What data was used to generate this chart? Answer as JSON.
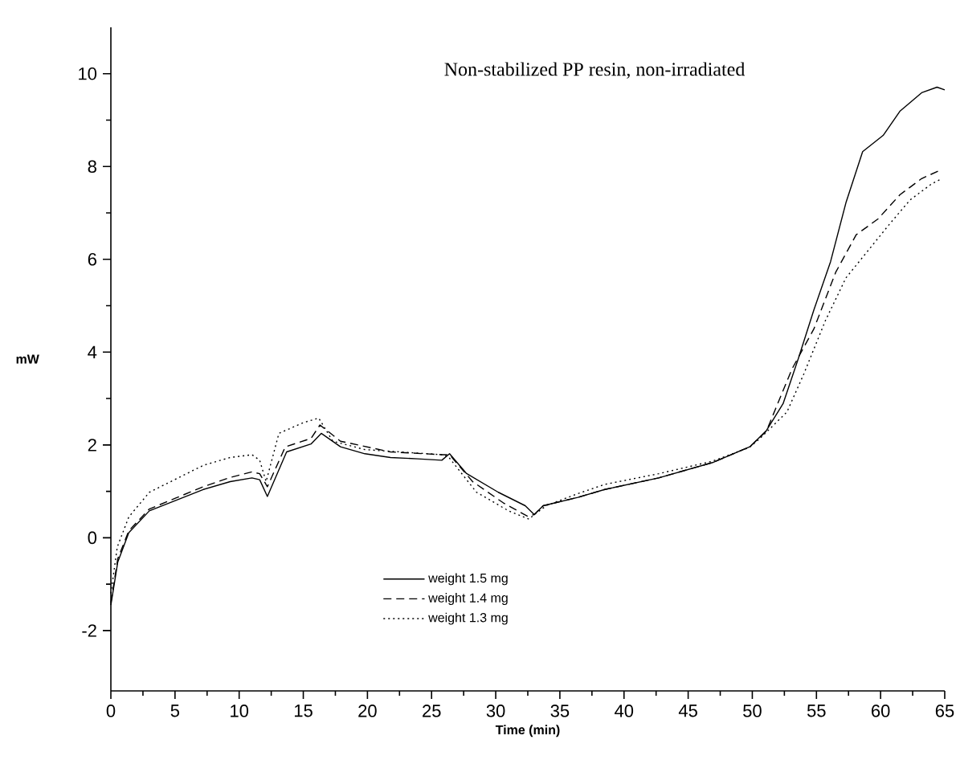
{
  "chart_data": {
    "type": "line",
    "title": "Non-stabilized PP resin, non-irradiated",
    "xlabel": "Time (min)",
    "ylabel": "mW",
    "xlim": [
      0,
      65
    ],
    "xticks": [
      0,
      5,
      10,
      15,
      20,
      25,
      30,
      35,
      40,
      45,
      50,
      55,
      60,
      65
    ],
    "ylim": [
      -3.3,
      11
    ],
    "yticks": [
      -2,
      0,
      2,
      4,
      6,
      8,
      10
    ],
    "grid": false,
    "legend": "bottom",
    "marker": "none",
    "series": [
      {
        "name": "weight 1.5 mg",
        "color": "#000000",
        "line_style": "solid",
        "x": [
          0,
          0.54,
          1.4,
          3.0,
          5.1,
          7.2,
          9.3,
          11.0,
          11.6,
          12.2,
          13.7,
          15.6,
          16.4,
          17.9,
          19.8,
          21.8,
          23.9,
          25.8,
          26.4,
          27.7,
          30.2,
          32.3,
          33.0,
          33.7,
          36.4,
          38.5,
          42.7,
          46.9,
          49.8,
          51.1,
          52.4,
          53.6,
          54.8,
          56.1,
          57.3,
          58.6,
          60.2,
          61.5,
          63.2,
          64.4,
          65
        ],
        "values": [
          -1.45,
          -0.52,
          0.11,
          0.58,
          0.81,
          1.04,
          1.21,
          1.29,
          1.25,
          0.89,
          1.85,
          2.02,
          2.25,
          1.96,
          1.81,
          1.73,
          1.7,
          1.67,
          1.81,
          1.39,
          0.98,
          0.69,
          0.5,
          0.69,
          0.87,
          1.04,
          1.29,
          1.62,
          1.96,
          2.31,
          2.89,
          3.87,
          4.91,
          5.95,
          7.22,
          8.32,
          8.67,
          9.19,
          9.59,
          9.71,
          9.65
        ]
      },
      {
        "name": "weight 1.4 mg",
        "color": "#000000",
        "line_style": "dashed",
        "x": [
          0,
          0.54,
          1.4,
          3.0,
          5.1,
          7.2,
          9.3,
          11.0,
          11.6,
          12.2,
          13.6,
          15.6,
          16.3,
          17.9,
          21.8,
          25.8,
          26.4,
          28.2,
          30.6,
          32.5,
          33.0,
          33.7,
          36.4,
          38.5,
          42.7,
          46.9,
          49.8,
          51.1,
          53.1,
          54.8,
          56.5,
          58.1,
          59.8,
          61.5,
          63.2,
          64.8
        ],
        "values": [
          -1.4,
          -0.45,
          0.15,
          0.62,
          0.86,
          1.1,
          1.3,
          1.42,
          1.38,
          1.1,
          1.96,
          2.14,
          2.43,
          2.08,
          1.85,
          1.79,
          1.79,
          1.21,
          0.75,
          0.46,
          0.5,
          0.69,
          0.87,
          1.04,
          1.29,
          1.62,
          1.96,
          2.3,
          3.64,
          4.5,
          5.72,
          6.53,
          6.87,
          7.39,
          7.74,
          7.94
        ]
      },
      {
        "name": "weight 1.3 mg",
        "color": "#000000",
        "line_style": "dotted",
        "x": [
          0,
          0.5,
          1.4,
          3.0,
          5.1,
          7.2,
          9.3,
          11.0,
          11.6,
          12.1,
          13.1,
          15.0,
          16.2,
          17.3,
          19.8,
          25.8,
          26.3,
          28.5,
          31.0,
          32.6,
          33.0,
          34.0,
          36.4,
          38.5,
          42.7,
          46.9,
          49.8,
          50.6,
          52.7,
          54.0,
          55.7,
          57.3,
          59.0,
          60.7,
          62.3,
          64.0,
          64.8
        ],
        "values": [
          -1.2,
          -0.2,
          0.45,
          0.98,
          1.27,
          1.56,
          1.73,
          1.79,
          1.67,
          1.21,
          2.25,
          2.48,
          2.58,
          2.08,
          1.9,
          1.79,
          1.75,
          0.98,
          0.58,
          0.4,
          0.5,
          0.7,
          0.95,
          1.15,
          1.38,
          1.65,
          1.95,
          2.14,
          2.71,
          3.52,
          4.68,
          5.6,
          6.18,
          6.76,
          7.28,
          7.63,
          7.74
        ]
      }
    ]
  }
}
